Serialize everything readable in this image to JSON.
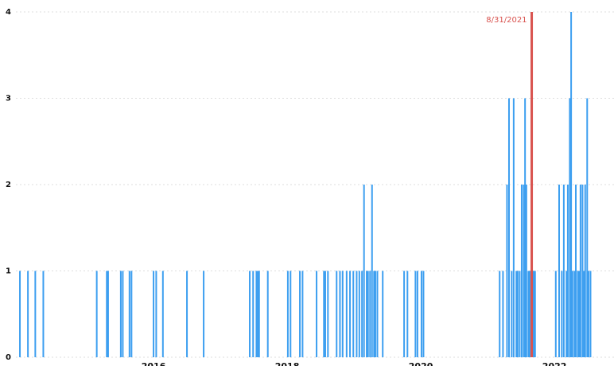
{
  "chart_data": {
    "type": "bar",
    "x": [
      2014.0,
      2014.12,
      2014.23,
      2014.35,
      2015.15,
      2015.3,
      2015.32,
      2015.51,
      2015.54,
      2015.64,
      2015.67,
      2016.0,
      2016.04,
      2016.14,
      2016.5,
      2016.75,
      2017.44,
      2017.49,
      2017.54,
      2017.56,
      2017.58,
      2017.71,
      2018.01,
      2018.05,
      2018.19,
      2018.23,
      2018.44,
      2018.55,
      2018.57,
      2018.61,
      2018.74,
      2018.79,
      2018.83,
      2018.89,
      2018.94,
      2018.99,
      2019.04,
      2019.08,
      2019.12,
      2019.15,
      2019.19,
      2019.21,
      2019.24,
      2019.27,
      2019.3,
      2019.32,
      2019.35,
      2019.43,
      2019.75,
      2019.8,
      2019.92,
      2019.95,
      2020.01,
      2020.04,
      2021.18,
      2021.23,
      2021.29,
      2021.32,
      2021.36,
      2021.39,
      2021.43,
      2021.45,
      2021.48,
      2021.51,
      2021.54,
      2021.56,
      2021.58,
      2021.61,
      2021.63,
      2021.67,
      2021.69,
      2021.71,
      2022.02,
      2022.07,
      2022.11,
      2022.14,
      2022.18,
      2022.2,
      2022.23,
      2022.25,
      2022.27,
      2022.3,
      2022.32,
      2022.35,
      2022.37,
      2022.39,
      2022.42,
      2022.44,
      2022.46,
      2022.49,
      2022.51,
      2022.54
    ],
    "values": [
      1,
      1,
      1,
      1,
      1,
      1,
      1,
      1,
      1,
      1,
      1,
      1,
      1,
      1,
      1,
      1,
      1,
      1,
      1,
      1,
      1,
      1,
      1,
      1,
      1,
      1,
      1,
      1,
      1,
      1,
      1,
      1,
      1,
      1,
      1,
      1,
      1,
      1,
      1,
      2,
      1,
      1,
      1,
      2,
      1,
      1,
      1,
      1,
      1,
      1,
      1,
      1,
      1,
      1,
      1,
      1,
      2,
      3,
      1,
      3,
      1,
      1,
      1,
      2,
      2,
      3,
      2,
      1,
      1,
      1,
      1,
      1,
      1,
      2,
      1,
      2,
      1,
      2,
      3,
      4,
      1,
      1,
      2,
      1,
      1,
      2,
      2,
      1,
      2,
      3,
      1,
      1
    ],
    "color": "#3d9ff0",
    "xlim": [
      2013.94,
      2022.57
    ],
    "xticks": [
      2016,
      2018,
      2020,
      2022
    ],
    "ylim": [
      0,
      4
    ],
    "yticks": [
      0,
      1,
      2,
      3,
      4
    ],
    "grid": true,
    "annotation": {
      "x": 2021.66,
      "label": "8/31/2021",
      "color": "#d9534f"
    }
  }
}
